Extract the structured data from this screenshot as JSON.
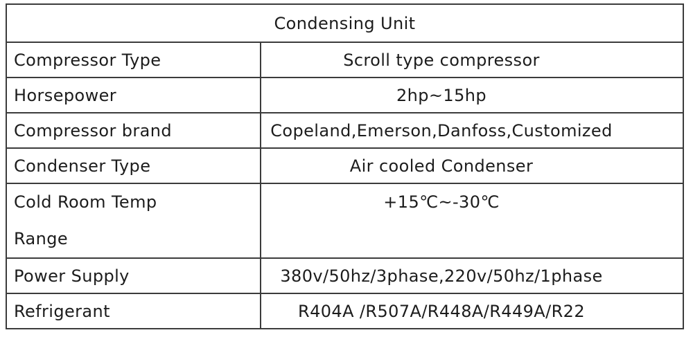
{
  "page": {
    "background_color": "#ffffff",
    "border_color": "#3b3b3b",
    "text_color": "#1c1c1c"
  },
  "table": {
    "title": "Condensing Unit",
    "rows": [
      {
        "label": "Compressor Type",
        "value": "Scroll type compressor",
        "tall": false
      },
      {
        "label": "Horsepower",
        "value": "2hp~15hp",
        "tall": false
      },
      {
        "label": "Compressor brand",
        "value": "Copeland,Emerson,Danfoss,Customized",
        "tall": false
      },
      {
        "label": "Condenser Type",
        "value": "Air cooled Condenser",
        "tall": false
      },
      {
        "label": "Cold Room Temp\nRange",
        "value": "+15℃~-30℃",
        "tall": true
      },
      {
        "label": "Power Supply",
        "value": "380v/50hz/3phase,220v/50hz/1phase",
        "tall": false
      },
      {
        "label": "Refrigerant",
        "value": "R404A /R507A/R448A/R449A/R22",
        "tall": false
      }
    ]
  }
}
